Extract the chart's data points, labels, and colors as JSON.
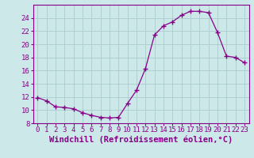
{
  "x": [
    0,
    1,
    2,
    3,
    4,
    5,
    6,
    7,
    8,
    9,
    10,
    11,
    12,
    13,
    14,
    15,
    16,
    17,
    18,
    19,
    20,
    21,
    22,
    23
  ],
  "y": [
    11.9,
    11.4,
    10.5,
    10.4,
    10.2,
    9.6,
    9.2,
    8.9,
    8.8,
    8.9,
    11.0,
    13.0,
    16.3,
    21.4,
    22.8,
    23.4,
    24.4,
    25.0,
    25.0,
    24.8,
    21.8,
    18.2,
    18.0,
    17.2
  ],
  "line_color": "#880088",
  "marker": "+",
  "marker_size": 4,
  "bg_color": "#cce8e8",
  "grid_color": "#aacccc",
  "axis_color": "#880088",
  "xlabel": "Windchill (Refroidissement éolien,°C)",
  "ylim": [
    8,
    26
  ],
  "xlim": [
    -0.5,
    23.5
  ],
  "yticks": [
    8,
    10,
    12,
    14,
    16,
    18,
    20,
    22,
    24
  ],
  "xticks": [
    0,
    1,
    2,
    3,
    4,
    5,
    6,
    7,
    8,
    9,
    10,
    11,
    12,
    13,
    14,
    15,
    16,
    17,
    18,
    19,
    20,
    21,
    22,
    23
  ],
  "font_size": 6.5,
  "xlabel_fontsize": 7.5
}
